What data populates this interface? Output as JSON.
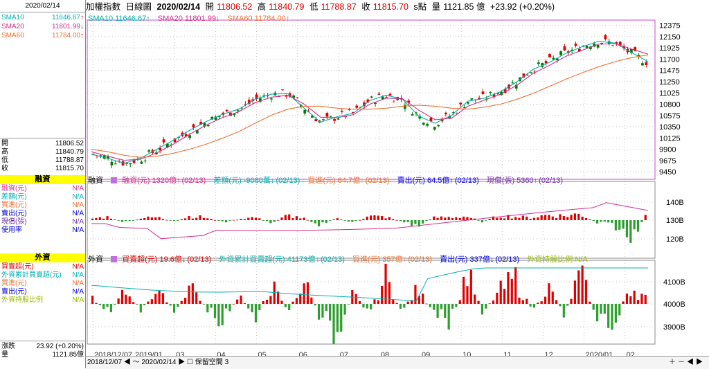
{
  "sidebar": {
    "date": "2020/02/14",
    "sma": [
      {
        "label": "SMA10",
        "value": "11646.67",
        "arrow": "↑",
        "color": "#00b0b0"
      },
      {
        "label": "SMA20",
        "value": "11801.99",
        "arrow": "↓",
        "color": "#d0308a"
      },
      {
        "label": "SMA60",
        "value": "11784.00",
        "arrow": "↑",
        "color": "#f07030"
      }
    ],
    "ohlc": [
      {
        "label": "開",
        "value": "11806.52"
      },
      {
        "label": "高",
        "value": "11840.79"
      },
      {
        "label": "低",
        "value": "11788.87"
      },
      {
        "label": "收",
        "value": "11815.70"
      }
    ],
    "margin_head": "融資",
    "margin_rows": [
      {
        "label": "融資(元)",
        "value": "N/A",
        "color": "#d0308a"
      },
      {
        "label": "差額(元)",
        "value": "N/A",
        "color": "#00b0b0"
      },
      {
        "label": "買進(元)",
        "value": "N/A",
        "color": "#f07030"
      },
      {
        "label": "賣出(元)",
        "value": "N/A",
        "color": "#0000e0"
      },
      {
        "label": "現償(張)",
        "value": "N/A",
        "color": "#7030a0"
      },
      {
        "label": "使用率",
        "value": "N/A",
        "color": "#0000e0"
      }
    ],
    "foreign_head": "外資",
    "foreign_rows": [
      {
        "label": "買賣超(元)",
        "value": "N/A",
        "color": "#e00000"
      },
      {
        "label": "外資累計買賣超(元)",
        "value": "N/A",
        "color": "#00b0b0"
      },
      {
        "label": "買進(元)",
        "value": "N/A",
        "color": "#f07030"
      },
      {
        "label": "賣出(元)",
        "value": "N/A",
        "color": "#0000e0"
      },
      {
        "label": "外資持股比例",
        "value": "N/A",
        "color": "#99bb00"
      }
    ],
    "change": {
      "label": "漲跌",
      "value": "23.92 (+0.20%)"
    },
    "volume": {
      "label": "量",
      "value": "1121.85億"
    }
  },
  "topbar": {
    "name": "加權指數",
    "period": "日線圖",
    "date": "2020/02/14",
    "open_label": "開",
    "open": "11806.52",
    "high_label": "高",
    "high": "11840.79",
    "low_label": "低",
    "low": "11788.87",
    "close_label": "收",
    "close": "11815.70",
    "unit": "s點",
    "vol_label": "量",
    "vol": "1121.85 億",
    "change": "+23.92 (+0.20%)"
  },
  "price_legend": [
    {
      "text": "SMA10 11646.67↑",
      "color": "#00b0b0"
    },
    {
      "text": "SMA20 11801.99↓",
      "color": "#d0308a"
    },
    {
      "text": "SMA60 11784.00↑",
      "color": "#f07030"
    }
  ],
  "margin_legend": {
    "title": "融資",
    "items": [
      {
        "text": "融資(元) 1320億↑",
        "color": "#d0308a"
      },
      {
        "text": "(02/13)",
        "color": "#d0308a"
      },
      {
        "text": "差額(元) -9080萬↓",
        "color": "#00b0b0"
      },
      {
        "text": "(02/13)",
        "color": "#00b0b0"
      },
      {
        "text": "買進(元) 64.7億↑",
        "color": "#f07030"
      },
      {
        "text": "(02/13)",
        "color": "#f07030"
      },
      {
        "text": "賣出(元) 64.5億↑",
        "color": "#0000e0"
      },
      {
        "text": "(02/13)",
        "color": "#0000e0"
      },
      {
        "text": "現償(張) 5360↑",
        "color": "#7030a0"
      },
      {
        "text": "(02/13)",
        "color": "#7030a0"
      }
    ]
  },
  "foreign_legend": {
    "title": "外資",
    "items": [
      {
        "text": "買賣超(元) 19.6億↓",
        "color": "#e00000"
      },
      {
        "text": "(02/13)",
        "color": "#e00000"
      },
      {
        "text": "外資累計買賣超(元) 41173億↑",
        "color": "#00b0b0"
      },
      {
        "text": "(02/13)",
        "color": "#00b0b0"
      },
      {
        "text": "買進(元) 357億↑",
        "color": "#f07030"
      },
      {
        "text": "(02/13)",
        "color": "#f07030"
      },
      {
        "text": "賣出(元) 337億↓",
        "color": "#0000e0"
      },
      {
        "text": "(02/13)",
        "color": "#0000e0"
      },
      {
        "text": "外資持股比例 N/A",
        "color": "#99bb00"
      }
    ]
  },
  "bottombar": {
    "from": "2018/12/07",
    "sep": "～",
    "to": "2020/02/14",
    "btn": "保留空間",
    "n": "3"
  },
  "colors": {
    "up": "#e00000",
    "down": "#007a00",
    "sma10": "#00b0b0",
    "sma20": "#d0308a",
    "sma60": "#f07030",
    "grid": "#c8c8c8",
    "frame": "#cc44cc"
  },
  "chart_data": [
    {
      "type": "line",
      "title": "",
      "yticks": [
        12375,
        12150,
        11925,
        11700,
        11475,
        11250,
        11025,
        10800,
        10575,
        10350,
        10125,
        9900,
        9675,
        9450
      ],
      "ylim": [
        9300,
        12480
      ],
      "xticks": [
        "2018/12/07",
        "2019/01",
        "03",
        "04",
        "05",
        "06",
        "07",
        "08",
        "09",
        "10",
        "11",
        "12",
        "2020/01",
        "02"
      ],
      "series": [
        {
          "name": "SMA10",
          "values": [
            9800,
            9720,
            9620,
            9720,
            9900,
            10080,
            10280,
            10450,
            10600,
            10700,
            10900,
            11000,
            11010,
            10720,
            10440,
            10550,
            10620,
            10870,
            10980,
            10900,
            10560,
            10420,
            10580,
            10860,
            10920,
            11050,
            11250,
            11500,
            11640,
            11820,
            11950,
            12060,
            12020,
            11830,
            11650
          ]
        },
        {
          "name": "SMA20",
          "values": [
            9850,
            9760,
            9680,
            9700,
            9830,
            10000,
            10200,
            10380,
            10530,
            10650,
            10830,
            10940,
            10980,
            10800,
            10540,
            10530,
            10590,
            10800,
            10920,
            10910,
            10680,
            10490,
            10520,
            10760,
            10880,
            11000,
            11180,
            11420,
            11580,
            11760,
            11880,
            12000,
            12010,
            11900,
            11800
          ]
        },
        {
          "name": "SMA60",
          "values": [
            9900,
            9850,
            9780,
            9740,
            9760,
            9820,
            9900,
            10000,
            10120,
            10250,
            10420,
            10580,
            10700,
            10760,
            10760,
            10720,
            10700,
            10700,
            10720,
            10760,
            10780,
            10760,
            10720,
            10700,
            10740,
            10800,
            10900,
            11020,
            11160,
            11300,
            11430,
            11550,
            11650,
            11730,
            11784
          ]
        }
      ]
    },
    {
      "type": "bar",
      "title": "",
      "yticks": [
        "140B",
        "130B",
        "120B"
      ],
      "series": [
        {
          "name": "融資(元)",
          "values": [
            0.4,
            0.8,
            -0.6,
            0.5,
            0.7,
            -0.4,
            1.0,
            0.6,
            -0.5,
            0.3,
            0.7,
            -0.8,
            1.2,
            0.4,
            -1.1,
            0.5,
            -0.6,
            0.9,
            0.8,
            -0.3,
            -1.4,
            0.6,
            0.7,
            0.9,
            -0.4,
            1.1,
            0.8,
            0.6,
            1.3,
            1.0,
            1.5,
            -0.7,
            -0.9,
            -4.8,
            0.8
          ]
        }
      ]
    },
    {
      "type": "bar",
      "title": "",
      "yticks": [
        "4100B",
        "4000B",
        "3900B"
      ],
      "series": [
        {
          "name": "買賣超(元)",
          "values": [
            5,
            -8,
            12,
            -6,
            15,
            -10,
            20,
            -4,
            -18,
            9,
            -12,
            18,
            -7,
            22,
            -14,
            -30,
            10,
            -9,
            25,
            -6,
            14,
            -11,
            -20,
            30,
            -8,
            12,
            24,
            -6,
            16,
            -9,
            28,
            -12,
            -24,
            18,
            6
          ]
        }
      ]
    }
  ]
}
